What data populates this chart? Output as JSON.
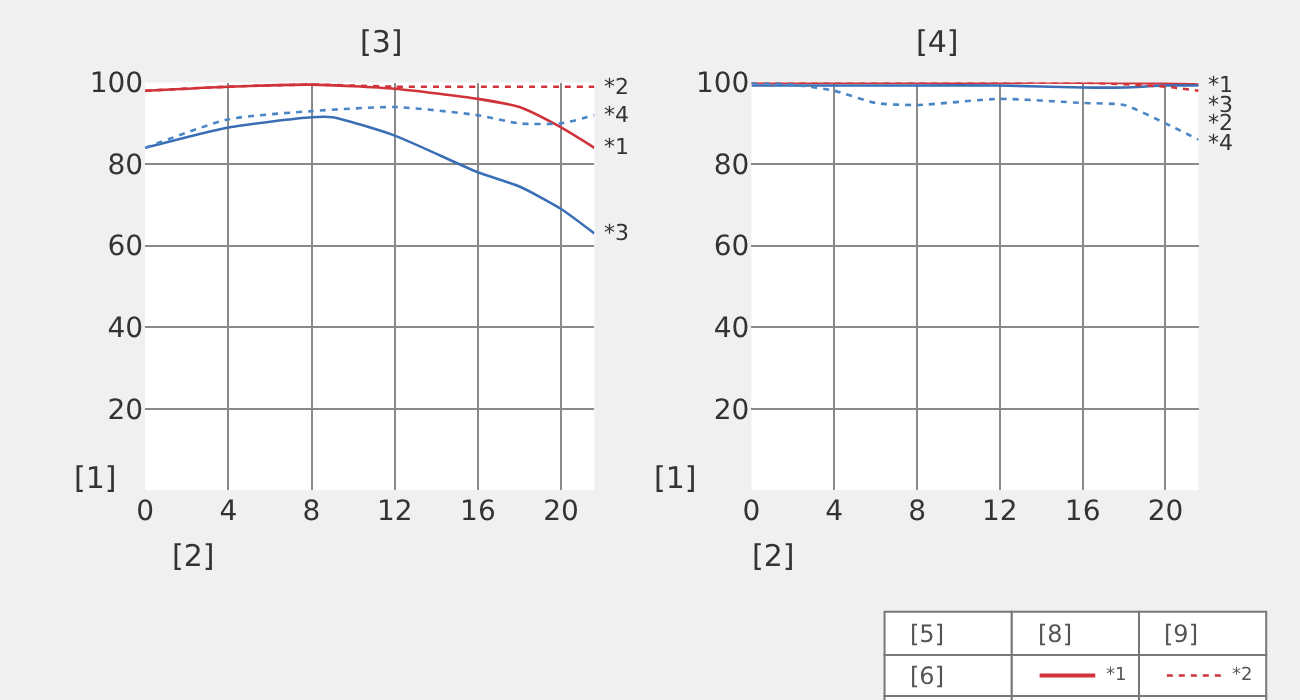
{
  "chart_data": [
    {
      "type": "line",
      "title": "[3]",
      "xlabel": "[2]",
      "ylabel": "[1]",
      "xlim": [
        0,
        21.6
      ],
      "ylim": [
        0,
        100
      ],
      "xticks": [
        0,
        4,
        8,
        12,
        16,
        20
      ],
      "yticks": [
        {
          "value": 0,
          "label": null
        },
        20,
        40,
        60,
        80,
        100
      ],
      "grid": true,
      "series": [
        {
          "name": "*1",
          "color": "#d0343a",
          "line_style": "solid",
          "x": [
            0,
            4,
            8,
            12,
            16,
            18,
            20,
            21.6
          ],
          "values": [
            98,
            99,
            99.5,
            98.5,
            96,
            94,
            89,
            84
          ]
        },
        {
          "name": "*2",
          "color": "#d0343a",
          "line_style": "dotted",
          "x": [
            0,
            4,
            8,
            12,
            16,
            20,
            21.6
          ],
          "values": [
            98,
            99,
            99.5,
            99,
            99,
            99,
            99
          ]
        },
        {
          "name": "*3",
          "color": "#3a6fb5",
          "line_style": "solid",
          "x": [
            0,
            4,
            8,
            9,
            12,
            16,
            18,
            20,
            21.6
          ],
          "values": [
            84,
            89,
            91.5,
            91.5,
            87,
            78,
            74.5,
            69,
            63
          ]
        },
        {
          "name": "*4",
          "color": "#4a86c5",
          "line_style": "dotted",
          "x": [
            0,
            4,
            8,
            12,
            16,
            18,
            20,
            21.6
          ],
          "values": [
            84,
            91,
            93,
            94,
            92,
            90,
            90,
            92
          ]
        }
      ]
    },
    {
      "type": "line",
      "title": "[4]",
      "xlabel": "[2]",
      "ylabel": "[1]",
      "xlim": [
        0,
        21.6
      ],
      "ylim": [
        0,
        100
      ],
      "xticks": [
        0,
        4,
        8,
        12,
        16,
        20
      ],
      "yticks": [
        {
          "value": 0,
          "label": null
        },
        20,
        40,
        60,
        80,
        100
      ],
      "grid": true,
      "series": [
        {
          "name": "*1",
          "color": "#d0343a",
          "line_style": "solid",
          "x": [
            0,
            4,
            8,
            12,
            16,
            20,
            21.6
          ],
          "values": [
            100,
            100,
            100,
            100,
            100,
            99.8,
            99.5
          ]
        },
        {
          "name": "*2",
          "color": "#d0343a",
          "line_style": "dotted",
          "x": [
            0,
            4,
            8,
            12,
            16,
            20,
            21.6
          ],
          "values": [
            100,
            100,
            100,
            100,
            100,
            99,
            98
          ]
        },
        {
          "name": "*3",
          "color": "#3a6fb5",
          "line_style": "solid",
          "x": [
            0,
            4,
            8,
            12,
            16,
            18,
            20,
            21.6
          ],
          "values": [
            99.3,
            99.3,
            99.3,
            99.3,
            98.8,
            98.8,
            99.3,
            99.3
          ]
        },
        {
          "name": "*4",
          "color": "#4a86c5",
          "line_style": "dotted",
          "x": [
            0,
            2,
            4,
            6,
            8,
            12,
            16,
            18,
            20,
            21.6
          ],
          "values": [
            100,
            99.5,
            98,
            95,
            94.5,
            96,
            95,
            94.5,
            90,
            86
          ]
        }
      ]
    },
    {
      "type": "other",
      "annotations": [
        "[5]",
        "[8]",
        "[9]",
        "[6]"
      ],
      "series": [
        {
          "name": "*1",
          "color": "#d0343a",
          "line_style": "solid"
        },
        {
          "name": "*2",
          "color": "#d0343a",
          "line_style": "dotted"
        }
      ]
    }
  ]
}
